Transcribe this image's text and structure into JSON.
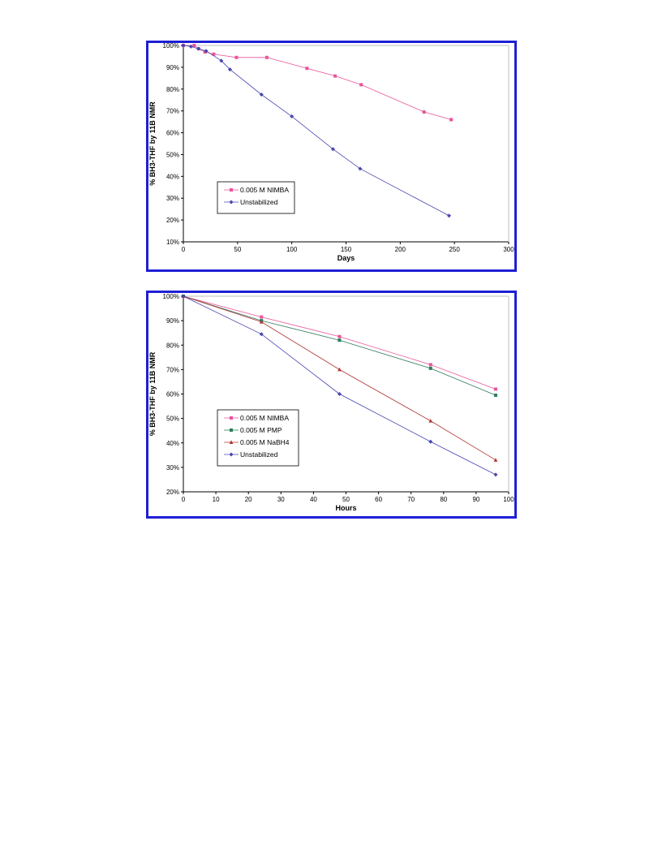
{
  "chart_data": [
    {
      "type": "line",
      "xlabel": "Days",
      "ylabel": "% BH3-THF by 11B NMR",
      "xlim": [
        0,
        300
      ],
      "ylim": [
        10,
        100
      ],
      "x_ticks": [
        "0",
        "50",
        "100",
        "150",
        "200",
        "250",
        "300"
      ],
      "y_ticks": [
        "10%",
        "20%",
        "30%",
        "40%",
        "50%",
        "60%",
        "70%",
        "80%",
        "90%",
        "100%"
      ],
      "grid": false,
      "legend_position": "bottom-left",
      "series": [
        {
          "name": "0.005 M NIMBA",
          "color": "#e8559a",
          "marker": "square",
          "x": [
            0,
            10,
            14,
            20,
            28,
            49,
            77,
            114,
            140,
            164,
            222,
            247
          ],
          "y": [
            100,
            100,
            98.5,
            97,
            96,
            94.5,
            94.5,
            89.5,
            86,
            82,
            69.5,
            66
          ]
        },
        {
          "name": "Unstabilized",
          "color": "#4646b0",
          "marker": "diamond",
          "x": [
            0,
            7,
            14,
            21,
            35,
            43,
            72,
            100,
            138,
            163,
            245
          ],
          "y": [
            100,
            99.5,
            98.5,
            97.5,
            93,
            89,
            77.5,
            67.5,
            52.5,
            43.5,
            22
          ]
        }
      ]
    },
    {
      "type": "line",
      "xlabel": "Hours",
      "ylabel": "% BH3-THF by 11B NMR",
      "xlim": [
        0,
        100
      ],
      "ylim": [
        20,
        100
      ],
      "x_ticks": [
        "0",
        "10",
        "20",
        "30",
        "40",
        "50",
        "60",
        "70",
        "80",
        "90",
        "100"
      ],
      "y_ticks": [
        "20%",
        "30%",
        "40%",
        "50%",
        "60%",
        "70%",
        "80%",
        "90%",
        "100%"
      ],
      "grid": false,
      "legend_position": "bottom-left",
      "series": [
        {
          "name": "0.005 M NIMBA",
          "color": "#e8559a",
          "marker": "square",
          "x": [
            0,
            24,
            48,
            76,
            96
          ],
          "y": [
            100,
            91.5,
            83.5,
            72,
            62
          ]
        },
        {
          "name": "0.005 M PMP",
          "color": "#2e7d5b",
          "marker": "square",
          "x": [
            0,
            24,
            48,
            76,
            96
          ],
          "y": [
            100,
            90,
            82,
            70.5,
            59.5
          ]
        },
        {
          "name": "0.005 M NaBH4",
          "color": "#b03636",
          "marker": "triangle",
          "x": [
            0,
            24,
            48,
            76,
            96
          ],
          "y": [
            100,
            89.5,
            70,
            49,
            33
          ]
        },
        {
          "name": "Unstabilized",
          "color": "#4646b0",
          "marker": "diamond",
          "x": [
            0,
            24,
            48,
            76,
            96
          ],
          "y": [
            100,
            84.5,
            60,
            40.5,
            27
          ]
        }
      ]
    }
  ]
}
